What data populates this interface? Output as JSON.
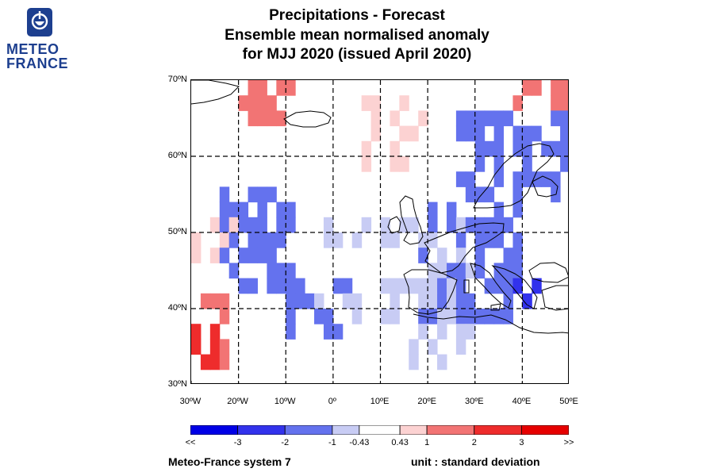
{
  "logo": {
    "line1": "METEO",
    "line2": "FRANCE",
    "brand_color": "#1d3f8f"
  },
  "title": {
    "line1": "Precipitations   -   Forecast",
    "line2": "Ensemble mean normalised anomaly",
    "line3": "for MJJ 2020   (issued April 2020)"
  },
  "map": {
    "lon_range": [
      -30,
      50
    ],
    "lat_range": [
      30,
      70
    ],
    "lat_ticks": [
      {
        "value": 70,
        "label": "70ºN"
      },
      {
        "value": 60,
        "label": "60ºN"
      },
      {
        "value": 50,
        "label": "50ºN"
      },
      {
        "value": 40,
        "label": "40ºN"
      },
      {
        "value": 30,
        "label": "30ºN"
      }
    ],
    "lon_ticks": [
      {
        "value": -30,
        "label": "30ºW"
      },
      {
        "value": -20,
        "label": "20ºW"
      },
      {
        "value": -10,
        "label": "10ºW"
      },
      {
        "value": 0,
        "label": "0º"
      },
      {
        "value": 10,
        "label": "10ºE"
      },
      {
        "value": 20,
        "label": "20ºE"
      },
      {
        "value": 30,
        "label": "30ºE"
      },
      {
        "value": 40,
        "label": "40ºE"
      },
      {
        "value": 50,
        "label": "50ºE"
      }
    ],
    "grid": "dashed",
    "cell_degrees": 2,
    "regions": [
      {
        "lon": [
          -30,
          50
        ],
        "lat": [
          30,
          70
        ],
        "cls": 4,
        "seed": 1,
        "p": 0.3
      },
      {
        "lon": [
          -24,
          -8
        ],
        "lat": [
          42,
          56
        ],
        "cls": 2,
        "seed": 2,
        "p": 0.55
      },
      {
        "lon": [
          -10,
          5
        ],
        "lat": [
          36,
          44
        ],
        "cls": 2,
        "seed": 3,
        "p": 0.5
      },
      {
        "lon": [
          18,
          40
        ],
        "lat": [
          38,
          54
        ],
        "cls": 2,
        "seed": 4,
        "p": 0.6
      },
      {
        "lon": [
          26,
          50
        ],
        "lat": [
          54,
          66
        ],
        "cls": 2,
        "seed": 5,
        "p": 0.5
      },
      {
        "lon": [
          36,
          44
        ],
        "lat": [
          41,
          44
        ],
        "cls": 1,
        "seed": 6,
        "p": 0.55
      },
      {
        "lon": [
          -20,
          -8
        ],
        "lat": [
          64,
          70
        ],
        "cls": 6,
        "seed": 7,
        "p": 0.65
      },
      {
        "lon": [
          6,
          20
        ],
        "lat": [
          58,
          68
        ],
        "cls": 5,
        "seed": 8,
        "p": 0.35
      },
      {
        "lon": [
          -30,
          -24
        ],
        "lat": [
          32,
          40
        ],
        "cls": 7,
        "seed": 9,
        "p": 0.55
      },
      {
        "lon": [
          -30,
          -22
        ],
        "lat": [
          32,
          42
        ],
        "cls": 6,
        "seed": 10,
        "p": 0.55
      },
      {
        "lon": [
          38,
          50
        ],
        "lat": [
          66,
          70
        ],
        "cls": 6,
        "seed": 11,
        "p": 0.45
      },
      {
        "lon": [
          -30,
          -20
        ],
        "lat": [
          46,
          52
        ],
        "cls": 5,
        "seed": 12,
        "p": 0.45
      },
      {
        "lon": [
          12,
          30
        ],
        "lat": [
          32,
          38
        ],
        "cls": 3,
        "seed": 13,
        "p": 0.45
      },
      {
        "lon": [
          -4,
          30
        ],
        "lat": [
          38,
          52
        ],
        "cls": 3,
        "seed": 14,
        "p": 0.3
      }
    ]
  },
  "colorbar": {
    "colors": [
      "#0000e6",
      "#3232ec",
      "#6472ee",
      "#c8ccf4",
      "#ffffff",
      "#fcd2d2",
      "#f27474",
      "#ee2c2c",
      "#e60000"
    ],
    "labels": [
      "<<",
      "-3",
      "-2",
      "-1",
      "-0.43",
      "0.43",
      "1",
      "2",
      "3",
      ">>"
    ],
    "label_positions": [
      -4,
      -3,
      -2,
      -1,
      -0.43,
      0.43,
      1,
      2,
      3,
      4
    ]
  },
  "footer": {
    "left": "Meteo-France system 7",
    "right": "unit : standard deviation"
  }
}
